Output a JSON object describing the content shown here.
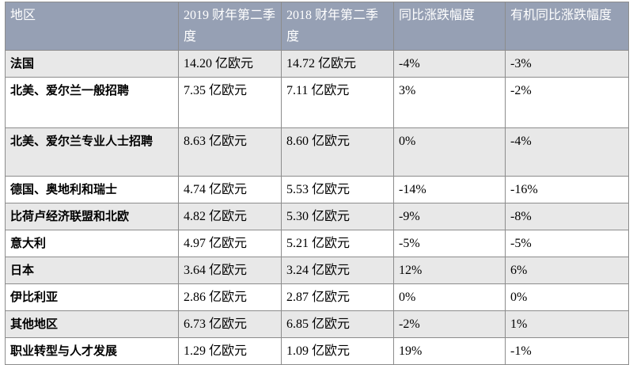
{
  "header": {
    "region": "地区",
    "q2_2019": "2019 财年第二季度",
    "q2_2018": "2018 财年第二季度",
    "yoy_change": "同比涨跌幅度",
    "organic_yoy_change": "有机同比涨跌幅度"
  },
  "rows": [
    {
      "region": "法国",
      "q2_2019": "14.20 亿欧元",
      "q2_2018": "14.72 亿欧元",
      "yoy": "-4%",
      "organic": "-3%"
    },
    {
      "region": "北美、爱尔兰一般招聘",
      "q2_2019": "7.35 亿欧元",
      "q2_2018": "7.11 亿欧元",
      "yoy": "3%",
      "organic": "-2%"
    },
    {
      "region": "北美、爱尔兰专业人士招聘",
      "q2_2019": "8.63 亿欧元",
      "q2_2018": "8.60 亿欧元",
      "yoy": "0%",
      "organic": "-4%"
    },
    {
      "region": "德国、奥地利和瑞士",
      "q2_2019": "4.74 亿欧元",
      "q2_2018": "5.53 亿欧元",
      "yoy": "-14%",
      "organic": "-16%"
    },
    {
      "region": "比荷卢经济联盟和北欧",
      "q2_2019": "4.82 亿欧元",
      "q2_2018": "5.30 亿欧元",
      "yoy": "-9%",
      "organic": "-8%"
    },
    {
      "region": "意大利",
      "q2_2019": "4.97 亿欧元",
      "q2_2018": "5.21 亿欧元",
      "yoy": "-5%",
      "organic": "-5%"
    },
    {
      "region": "日本",
      "q2_2019": "3.64 亿欧元",
      "q2_2018": "3.24 亿欧元",
      "yoy": "12%",
      "organic": "6%"
    },
    {
      "region": "伊比利亚",
      "q2_2019": "2.86 亿欧元",
      "q2_2018": "2.87 亿欧元",
      "yoy": "0%",
      "organic": "0%"
    },
    {
      "region": "其他地区",
      "q2_2019": "6.73 亿欧元",
      "q2_2018": "6.85 亿欧元",
      "yoy": "-2%",
      "organic": "1%"
    },
    {
      "region": "职业转型与人才发展",
      "q2_2019": "1.29 亿欧元",
      "q2_2018": "1.09 亿欧元",
      "yoy": "19%",
      "organic": "-1%"
    }
  ],
  "colors": {
    "header_bg": "#96a0b4",
    "shaded_row_bg": "#e8e8e8",
    "border": "#8c8c8c"
  }
}
